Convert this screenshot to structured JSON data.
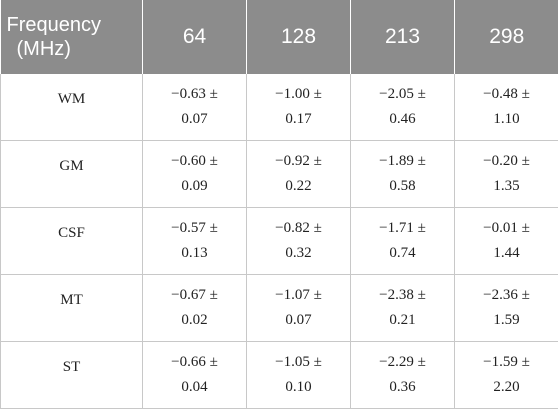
{
  "table": {
    "corner_header_line1": "Frequency",
    "corner_header_line2": "(MHz)",
    "columns": [
      "64",
      "128",
      "213",
      "298"
    ],
    "rows": [
      {
        "label": "WM",
        "cells": [
          [
            "−0.63 ±",
            "0.07"
          ],
          [
            "−1.00 ±",
            "0.17"
          ],
          [
            "−2.05 ±",
            "0.46"
          ],
          [
            "−0.48 ±",
            "1.10"
          ]
        ]
      },
      {
        "label": "GM",
        "cells": [
          [
            "−0.60 ±",
            "0.09"
          ],
          [
            "−0.92 ±",
            "0.22"
          ],
          [
            "−1.89 ±",
            "0.58"
          ],
          [
            "−0.20 ±",
            "1.35"
          ]
        ]
      },
      {
        "label": "CSF",
        "cells": [
          [
            "−0.57 ±",
            "0.13"
          ],
          [
            "−0.82 ±",
            "0.32"
          ],
          [
            "−1.71 ±",
            "0.74"
          ],
          [
            "−0.01 ±",
            "1.44"
          ]
        ]
      },
      {
        "label": "MT",
        "cells": [
          [
            "−0.67 ±",
            "0.02"
          ],
          [
            "−1.07 ±",
            "0.07"
          ],
          [
            "−2.38 ±",
            "0.21"
          ],
          [
            "−2.36 ±",
            "1.59"
          ]
        ]
      },
      {
        "label": "ST",
        "cells": [
          [
            "−0.66 ±",
            "0.04"
          ],
          [
            "−1.05 ±",
            "0.10"
          ],
          [
            "−2.29 ±",
            "0.36"
          ],
          [
            "−1.59 ±",
            "2.20"
          ]
        ]
      }
    ]
  },
  "colors": {
    "header_background": "#8c8c8c",
    "header_text": "#ffffff",
    "grid_lines": "#c8c8c8"
  }
}
